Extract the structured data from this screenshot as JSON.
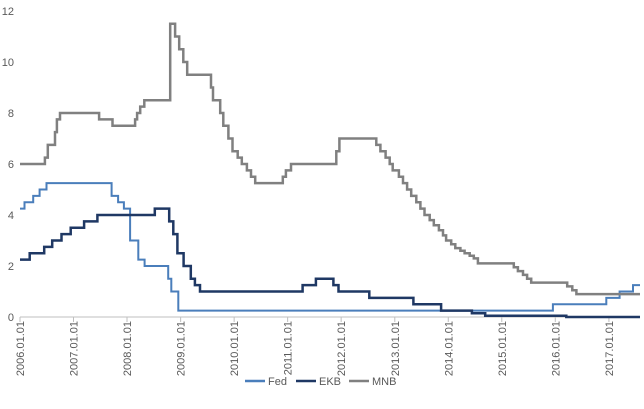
{
  "chart_data": {
    "type": "line",
    "title": "",
    "xlabel": "",
    "ylabel": "",
    "xlim": [
      "2006-01-01",
      "2017-08-01"
    ],
    "ylim": [
      0,
      12
    ],
    "grid": false,
    "legend_position": "bottom",
    "ytick_labels": [
      "0",
      "2",
      "4",
      "6",
      "8",
      "10",
      "12"
    ],
    "yticks": [
      0,
      2,
      4,
      6,
      8,
      10,
      12
    ],
    "xtick_labels": [
      "2006.01.01",
      "2007.01.01",
      "2008.01.01",
      "2009.01.01",
      "2010.01.01",
      "2011.01.01",
      "2012.01.01",
      "2013.01.01",
      "2014.01.01",
      "2015.01.01",
      "2016.01.01",
      "2017.01.01"
    ],
    "xtick_values": [
      "2006-01-01",
      "2007-01-01",
      "2008-01-01",
      "2009-01-01",
      "2010-01-01",
      "2011-01-01",
      "2012-01-01",
      "2013-01-01",
      "2014-01-01",
      "2015-01-01",
      "2016-01-01",
      "2017-01-01"
    ],
    "series": [
      {
        "name": "Fed",
        "color": "#4a7ebb",
        "width": 2,
        "step": true,
        "points": [
          [
            "2006-01-01",
            4.25
          ],
          [
            "2006-02-01",
            4.5
          ],
          [
            "2006-04-01",
            4.75
          ],
          [
            "2006-05-15",
            5.0
          ],
          [
            "2006-07-01",
            5.25
          ],
          [
            "2007-09-18",
            4.75
          ],
          [
            "2007-11-01",
            4.5
          ],
          [
            "2007-12-11",
            4.25
          ],
          [
            "2008-01-22",
            3.0
          ],
          [
            "2008-03-18",
            2.25
          ],
          [
            "2008-04-30",
            2.0
          ],
          [
            "2008-10-08",
            1.5
          ],
          [
            "2008-10-29",
            1.0
          ],
          [
            "2008-12-16",
            0.25
          ],
          [
            "2015-12-16",
            0.5
          ],
          [
            "2016-12-14",
            0.75
          ],
          [
            "2017-03-15",
            1.0
          ],
          [
            "2017-06-14",
            1.25
          ],
          [
            "2017-08-01",
            1.25
          ]
        ]
      },
      {
        "name": "EKB",
        "color": "#1f3864",
        "width": 2.5,
        "step": true,
        "points": [
          [
            "2006-01-01",
            2.25
          ],
          [
            "2006-03-08",
            2.5
          ],
          [
            "2006-06-15",
            2.75
          ],
          [
            "2006-08-09",
            3.0
          ],
          [
            "2006-10-11",
            3.25
          ],
          [
            "2006-12-13",
            3.5
          ],
          [
            "2007-03-14",
            3.75
          ],
          [
            "2007-06-13",
            4.0
          ],
          [
            "2008-07-09",
            4.25
          ],
          [
            "2008-10-15",
            3.75
          ],
          [
            "2008-11-12",
            3.25
          ],
          [
            "2008-12-10",
            2.5
          ],
          [
            "2009-01-21",
            2.0
          ],
          [
            "2009-03-11",
            1.5
          ],
          [
            "2009-04-08",
            1.25
          ],
          [
            "2009-05-13",
            1.0
          ],
          [
            "2011-04-13",
            1.25
          ],
          [
            "2011-07-13",
            1.5
          ],
          [
            "2011-11-09",
            1.25
          ],
          [
            "2011-12-14",
            1.0
          ],
          [
            "2012-07-11",
            0.75
          ],
          [
            "2013-05-08",
            0.5
          ],
          [
            "2013-11-13",
            0.25
          ],
          [
            "2014-06-11",
            0.15
          ],
          [
            "2014-09-10",
            0.05
          ],
          [
            "2016-03-16",
            0.0
          ],
          [
            "2017-08-01",
            0.0
          ]
        ]
      },
      {
        "name": "MNB",
        "color": "#808080",
        "width": 2.5,
        "step": true,
        "points": [
          [
            "2006-01-01",
            6.0
          ],
          [
            "2006-06-20",
            6.25
          ],
          [
            "2006-07-10",
            6.75
          ],
          [
            "2006-08-28",
            7.25
          ],
          [
            "2006-09-10",
            7.75
          ],
          [
            "2006-10-01",
            8.0
          ],
          [
            "2007-06-25",
            7.75
          ],
          [
            "2007-09-24",
            7.5
          ],
          [
            "2008-02-25",
            7.75
          ],
          [
            "2008-03-10",
            8.0
          ],
          [
            "2008-03-31",
            8.25
          ],
          [
            "2008-04-28",
            8.5
          ],
          [
            "2008-10-22",
            11.5
          ],
          [
            "2008-11-24",
            11.0
          ],
          [
            "2008-12-22",
            10.5
          ],
          [
            "2009-01-19",
            10.0
          ],
          [
            "2009-02-15",
            9.5
          ],
          [
            "2009-07-27",
            9.0
          ],
          [
            "2009-08-10",
            8.5
          ],
          [
            "2009-09-28",
            8.0
          ],
          [
            "2009-10-19",
            7.5
          ],
          [
            "2009-11-23",
            7.0
          ],
          [
            "2009-12-21",
            6.5
          ],
          [
            "2010-01-25",
            6.25
          ],
          [
            "2010-02-22",
            6.0
          ],
          [
            "2010-03-29",
            5.75
          ],
          [
            "2010-04-26",
            5.5
          ],
          [
            "2010-05-25",
            5.25
          ],
          [
            "2010-11-29",
            5.5
          ],
          [
            "2010-12-20",
            5.75
          ],
          [
            "2011-01-24",
            6.0
          ],
          [
            "2011-11-29",
            6.5
          ],
          [
            "2011-12-20",
            7.0
          ],
          [
            "2012-08-28",
            6.75
          ],
          [
            "2012-09-25",
            6.5
          ],
          [
            "2012-10-30",
            6.25
          ],
          [
            "2012-11-27",
            6.0
          ],
          [
            "2012-12-18",
            5.75
          ],
          [
            "2013-01-29",
            5.5
          ],
          [
            "2013-02-26",
            5.25
          ],
          [
            "2013-03-26",
            5.0
          ],
          [
            "2013-04-23",
            4.75
          ],
          [
            "2013-05-28",
            4.5
          ],
          [
            "2013-06-25",
            4.25
          ],
          [
            "2013-07-23",
            4.0
          ],
          [
            "2013-08-27",
            3.8
          ],
          [
            "2013-09-24",
            3.6
          ],
          [
            "2013-10-29",
            3.4
          ],
          [
            "2013-11-26",
            3.2
          ],
          [
            "2013-12-17",
            3.0
          ],
          [
            "2014-01-21",
            2.85
          ],
          [
            "2014-02-18",
            2.7
          ],
          [
            "2014-03-25",
            2.6
          ],
          [
            "2014-04-22",
            2.5
          ],
          [
            "2014-05-27",
            2.4
          ],
          [
            "2014-06-24",
            2.3
          ],
          [
            "2014-07-22",
            2.1
          ],
          [
            "2015-03-24",
            1.95
          ],
          [
            "2015-04-21",
            1.8
          ],
          [
            "2015-05-26",
            1.65
          ],
          [
            "2015-06-23",
            1.5
          ],
          [
            "2015-07-21",
            1.35
          ],
          [
            "2016-03-22",
            1.2
          ],
          [
            "2016-04-26",
            1.05
          ],
          [
            "2016-05-24",
            0.9
          ],
          [
            "2017-08-01",
            0.9
          ]
        ]
      }
    ]
  },
  "legend": {
    "items": [
      {
        "label": "Fed",
        "color": "#4a7ebb"
      },
      {
        "label": "EKB",
        "color": "#1f3864"
      },
      {
        "label": "MNB",
        "color": "#808080"
      }
    ]
  }
}
